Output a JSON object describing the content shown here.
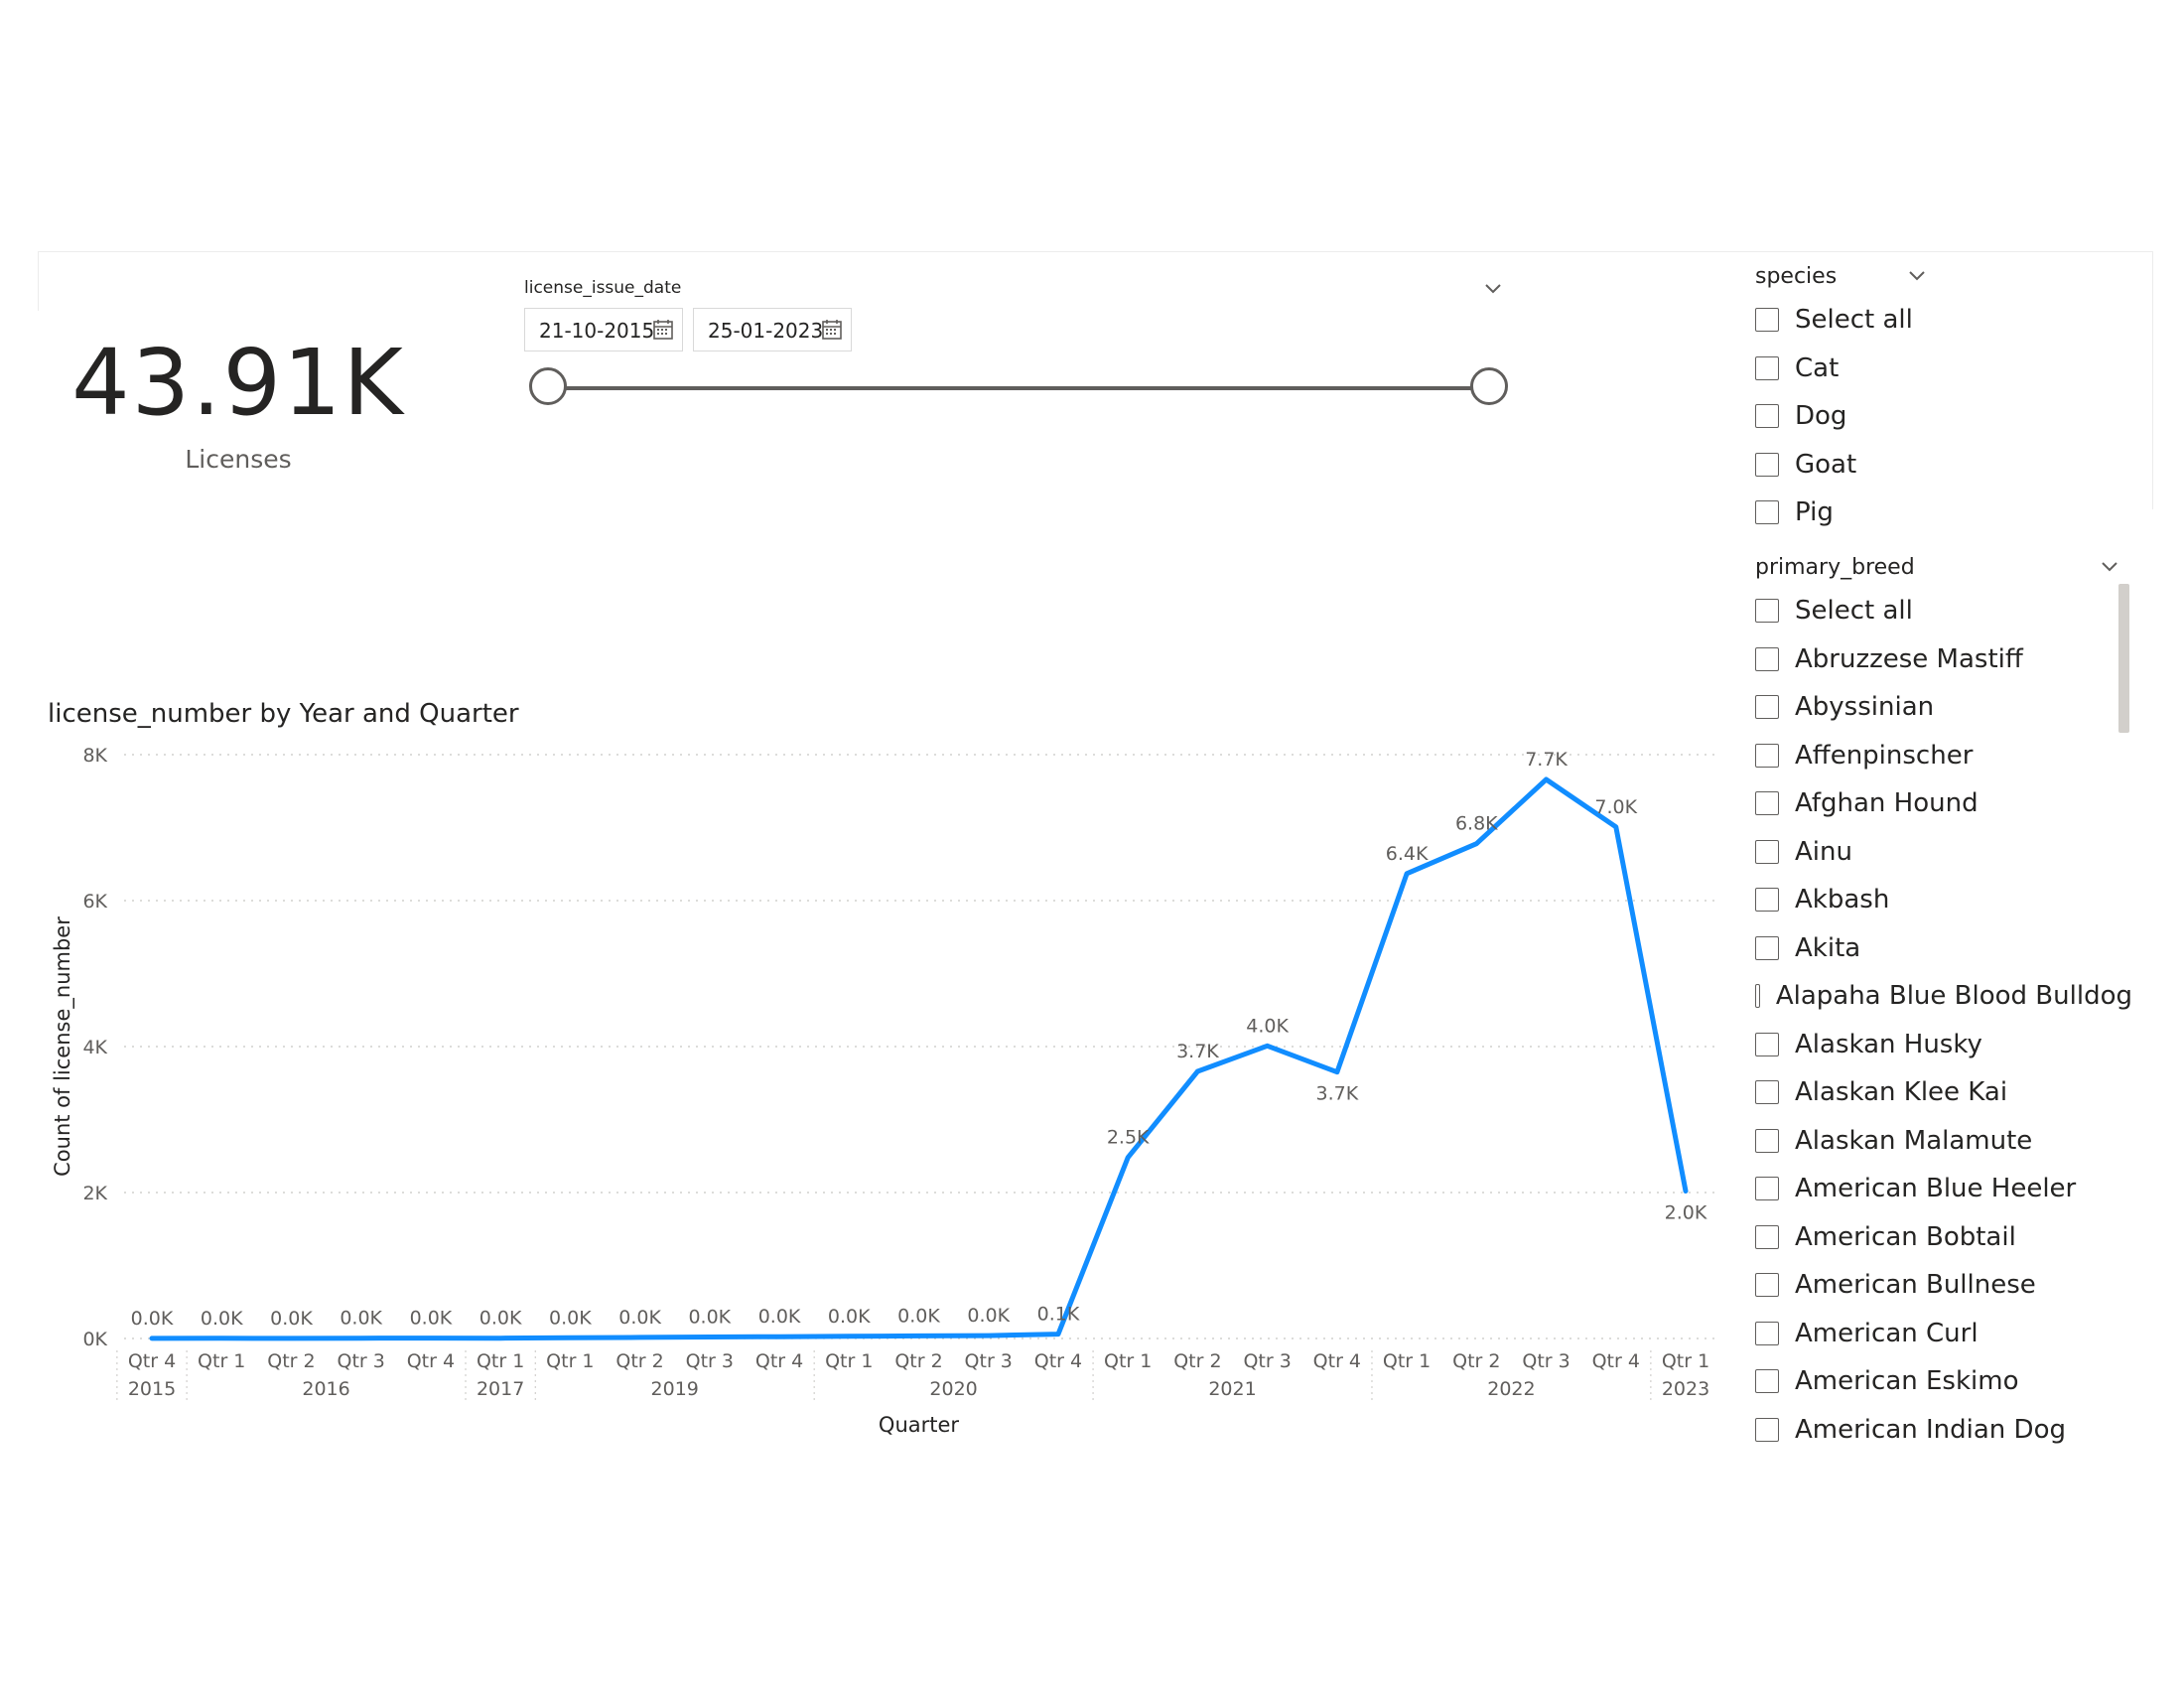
{
  "kpi": {
    "value": "43.91K",
    "label": "Licenses"
  },
  "date_slicer": {
    "title": "license_issue_date",
    "start_date": "21-10-2015",
    "end_date": "25-01-2023",
    "range_start_fraction": 0.0,
    "range_end_fraction": 1.0
  },
  "species_slicer": {
    "title": "species",
    "options": [
      "Select all",
      "Cat",
      "Dog",
      "Goat",
      "Pig"
    ]
  },
  "breed_slicer": {
    "title": "primary_breed",
    "options": [
      "Select all",
      "Abruzzese Mastiff",
      "Abyssinian",
      "Affenpinscher",
      "Afghan Hound",
      "Ainu",
      "Akbash",
      "Akita",
      "Alapaha Blue Blood Bulldog",
      "Alaskan Husky",
      "Alaskan Klee Kai",
      "Alaskan Malamute",
      "American Blue Heeler",
      "American Bobtail",
      "American Bullnese",
      "American Curl",
      "American Eskimo",
      "American Indian Dog"
    ]
  },
  "colors": {
    "line": "#118dff",
    "grid": "#c8c6c4",
    "text": "#252423",
    "muted": "#605e5c"
  },
  "chart_data": {
    "type": "line",
    "title": "license_number by Year and Quarter",
    "xlabel": "Quarter",
    "ylabel": "Count of license_number",
    "ylim": [
      0,
      8000
    ],
    "yticks": [
      {
        "value": 0,
        "label": "0K"
      },
      {
        "value": 2000,
        "label": "2K"
      },
      {
        "value": 4000,
        "label": "4K"
      },
      {
        "value": 6000,
        "label": "6K"
      },
      {
        "value": 8000,
        "label": "8K"
      }
    ],
    "grid": true,
    "categories": [
      "Qtr 4",
      "Qtr 1",
      "Qtr 2",
      "Qtr 3",
      "Qtr 4",
      "Qtr 1",
      "Qtr 1",
      "Qtr 2",
      "Qtr 3",
      "Qtr 4",
      "Qtr 1",
      "Qtr 2",
      "Qtr 3",
      "Qtr 4",
      "Qtr 1",
      "Qtr 2",
      "Qtr 3",
      "Qtr 4",
      "Qtr 1",
      "Qtr 2",
      "Qtr 3",
      "Qtr 4",
      "Qtr 1"
    ],
    "years": [
      {
        "label": "2015",
        "start": 0,
        "end": 0
      },
      {
        "label": "2016",
        "start": 1,
        "end": 4
      },
      {
        "label": "2017",
        "start": 5,
        "end": 5
      },
      {
        "label": "2019",
        "start": 6,
        "end": 9
      },
      {
        "label": "2020",
        "start": 10,
        "end": 13
      },
      {
        "label": "2021",
        "start": 14,
        "end": 17
      },
      {
        "label": "2022",
        "start": 18,
        "end": 21
      },
      {
        "label": "2023",
        "start": 22,
        "end": 22
      }
    ],
    "series": [
      {
        "name": "Count of license_number",
        "values": [
          2,
          3,
          2,
          4,
          5,
          4,
          10,
          15,
          20,
          25,
          30,
          35,
          40,
          60,
          2480,
          3660,
          4010,
          3650,
          6370,
          6780,
          7660,
          7010,
          2020
        ],
        "labels": [
          "0.0K",
          "0.0K",
          "0.0K",
          "0.0K",
          "0.0K",
          "0.0K",
          "0.0K",
          "0.0K",
          "0.0K",
          "0.0K",
          "0.0K",
          "0.0K",
          "0.0K",
          "0.1K",
          "2.5K",
          "3.7K",
          "4.0K",
          "3.7K",
          "6.4K",
          "6.8K",
          "7.7K",
          "7.0K",
          "2.0K"
        ],
        "label_below": [
          false,
          false,
          false,
          false,
          false,
          false,
          false,
          false,
          false,
          false,
          false,
          false,
          false,
          false,
          false,
          false,
          false,
          true,
          false,
          false,
          false,
          false,
          true
        ]
      }
    ]
  }
}
